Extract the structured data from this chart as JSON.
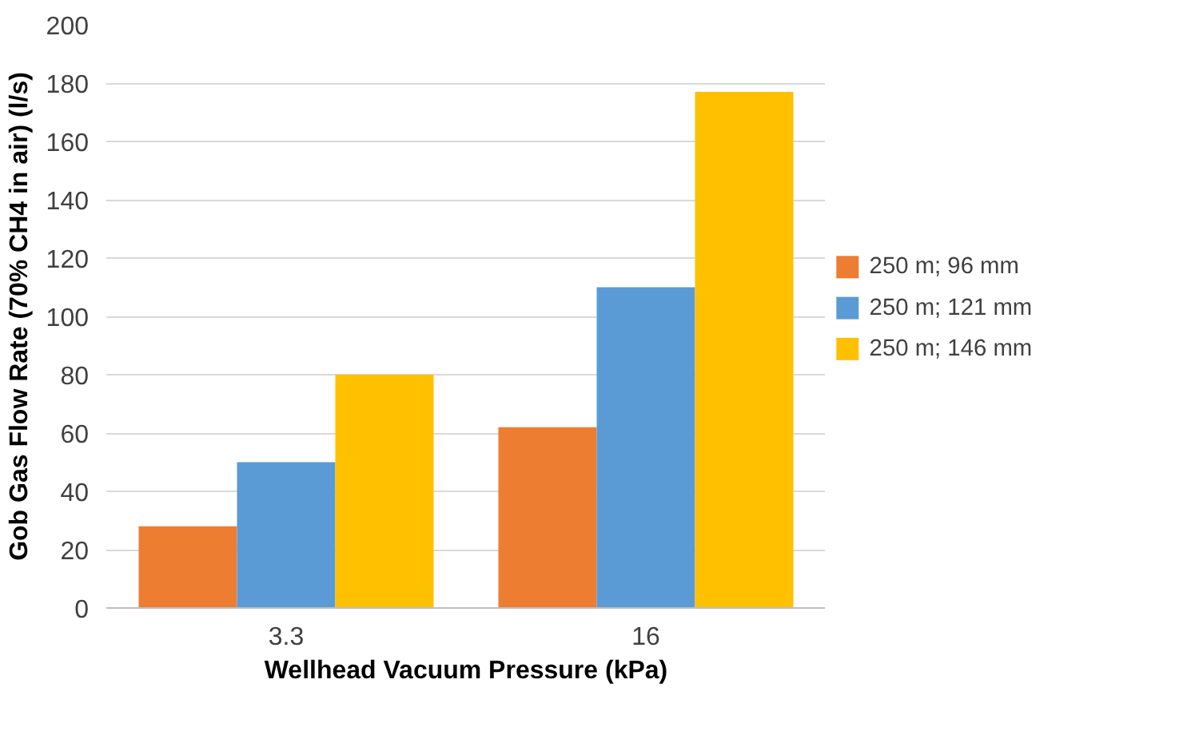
{
  "chart_data": {
    "type": "bar",
    "xlabel": "Wellhead Vacuum Pressure (kPa)",
    "ylabel": "Gob Gas Flow Rate (70% CH4 in air) (l/s)",
    "categories": [
      "3.3",
      "16"
    ],
    "series": [
      {
        "name": "250 m; 96 mm",
        "color": "#ed7d31",
        "values": [
          28,
          62
        ]
      },
      {
        "name": "250 m; 121 mm",
        "color": "#5b9bd5",
        "values": [
          50,
          110
        ]
      },
      {
        "name": "250 m; 146 mm",
        "color": "#ffc000",
        "values": [
          80,
          177
        ]
      }
    ],
    "ylim": [
      0,
      200
    ],
    "yticks": [
      0,
      20,
      40,
      60,
      80,
      100,
      120,
      140,
      160,
      180,
      200
    ],
    "grid": "y",
    "legend": "right"
  }
}
